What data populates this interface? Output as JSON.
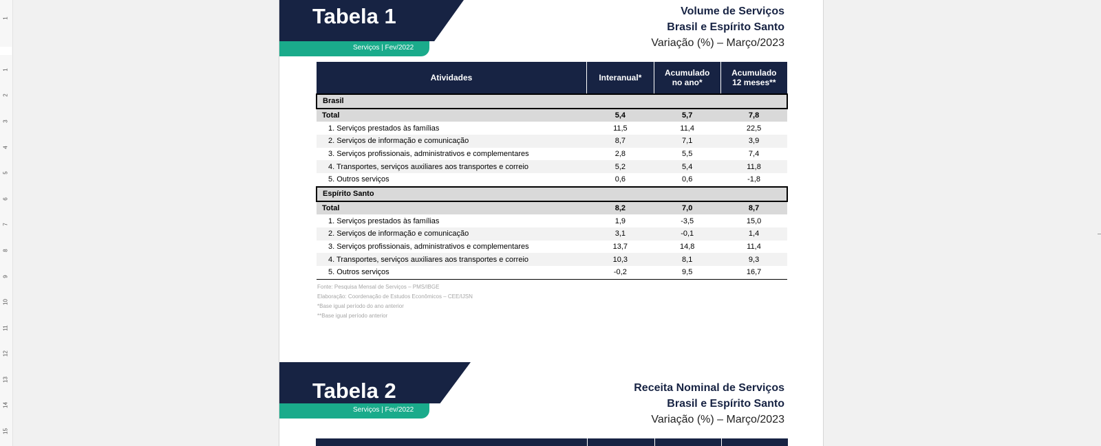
{
  "ruler": {
    "labels": [
      "1",
      "1",
      "2",
      "3",
      "4",
      "5",
      "6",
      "7",
      "8",
      "9",
      "10",
      "11",
      "12",
      "13",
      "14",
      "15"
    ]
  },
  "tables": [
    {
      "banner_title": "Tabela 1",
      "banner_subtitle": "Serviços | Fev/2022",
      "heading_line1": "Volume de Serviços",
      "heading_line2": "Brasil e Espírito Santo",
      "heading_line3": "Variação (%) – Março/2023",
      "columns": [
        "Atividades",
        "Interanual*",
        "Acumulado no ano*",
        "Acumulado 12 meses**"
      ],
      "groups": [
        {
          "region": "Brasil",
          "total": {
            "label": "Total",
            "values": [
              "5,4",
              "5,7",
              "7,8"
            ]
          },
          "rows": [
            {
              "label": "1. Serviços prestados às famílias",
              "values": [
                "11,5",
                "11,4",
                "22,5"
              ]
            },
            {
              "label": "2. Serviços de informação e comunicação",
              "values": [
                "8,7",
                "7,1",
                "3,9"
              ]
            },
            {
              "label": "3. Serviços profissionais, administrativos e complementares",
              "values": [
                "2,8",
                "5,5",
                "7,4"
              ]
            },
            {
              "label": "4. Transportes, serviços auxiliares aos transportes e correio",
              "values": [
                "5,2",
                "5,4",
                "11,8"
              ]
            },
            {
              "label": "5. Outros serviços",
              "values": [
                "0,6",
                "0,6",
                "-1,8"
              ]
            }
          ]
        },
        {
          "region": "Espírito Santo",
          "total": {
            "label": "Total",
            "values": [
              "8,2",
              "7,0",
              "8,7"
            ]
          },
          "rows": [
            {
              "label": "1. Serviços prestados às famílias",
              "values": [
                "1,9",
                "-3,5",
                "15,0"
              ]
            },
            {
              "label": "2. Serviços de informação e comunicação",
              "values": [
                "3,1",
                "-0,1",
                "1,4"
              ]
            },
            {
              "label": "3. Serviços profissionais, administrativos e complementares",
              "values": [
                "13,7",
                "14,8",
                "11,4"
              ]
            },
            {
              "label": "4. Transportes, serviços auxiliares aos transportes e correio",
              "values": [
                "10,3",
                "8,1",
                "9,3"
              ]
            },
            {
              "label": "5. Outros serviços",
              "values": [
                "-0,2",
                "9,5",
                "16,7"
              ]
            }
          ]
        }
      ],
      "notes": [
        "Fonte: Pesquisa Mensal de Serviços – PMS/IBGE",
        "Elaboração: Coordenação de Estudos Econômicos – CEE/IJSN",
        "*Base igual período do ano anterior",
        "**Base igual período anterior"
      ]
    },
    {
      "banner_title": "Tabela 2",
      "banner_subtitle": "Serviços | Fev/2022",
      "heading_line1": "Receita Nominal de Serviços",
      "heading_line2": "Brasil e Espírito Santo",
      "heading_line3": "Variação (%) – Março/2023"
    }
  ],
  "colors": {
    "navy": "#172343",
    "green": "#1aab8b",
    "gray_row": "#d9d9d9"
  }
}
